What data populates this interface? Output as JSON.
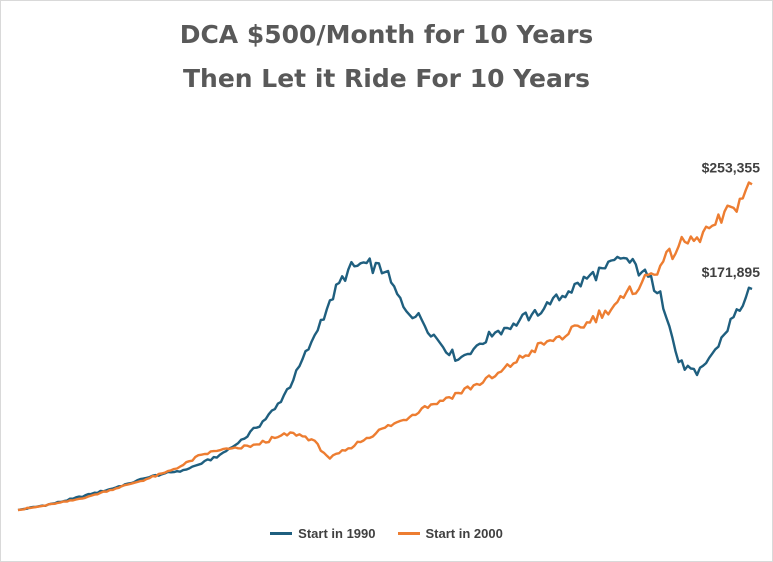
{
  "chart_data": {
    "type": "line",
    "title_lines": [
      "DCA $500/Month for 10 Years",
      "Then Let it Ride For 10 Years"
    ],
    "xlabel": "",
    "ylabel": "",
    "x_range": [
      0,
      240
    ],
    "ylim": [
      0,
      280000
    ],
    "grid": false,
    "legend_position": "bottom",
    "series": [
      {
        "name": "Start in 1990",
        "color": "#1f5f7f",
        "x": [
          0,
          6,
          12,
          18,
          24,
          30,
          36,
          42,
          48,
          54,
          60,
          66,
          72,
          78,
          84,
          90,
          96,
          102,
          108,
          114,
          120,
          126,
          132,
          138,
          144,
          150,
          156,
          162,
          168,
          174,
          180,
          186,
          192,
          198,
          204,
          210,
          216,
          222,
          228,
          234,
          240
        ],
        "values": [
          0,
          2500,
          5200,
          8800,
          12500,
          16200,
          20500,
          25000,
          28500,
          31000,
          36000,
          43000,
          52000,
          64000,
          78500,
          101000,
          131000,
          163000,
          187000,
          192000,
          185000,
          158000,
          148000,
          130000,
          117000,
          128000,
          138000,
          145000,
          152000,
          160000,
          170000,
          180000,
          188000,
          196000,
          185000,
          170000,
          115000,
          105000,
          125000,
          150000,
          171895
        ],
        "end_label": "$171,895"
      },
      {
        "name": "Start in 2000",
        "color": "#ed7d31",
        "x": [
          0,
          6,
          12,
          18,
          24,
          30,
          36,
          42,
          48,
          54,
          60,
          66,
          72,
          78,
          84,
          90,
          96,
          102,
          108,
          114,
          120,
          126,
          132,
          138,
          144,
          150,
          156,
          162,
          168,
          174,
          180,
          186,
          192,
          198,
          204,
          210,
          216,
          222,
          228,
          234,
          240
        ],
        "values": [
          0,
          2300,
          4800,
          7500,
          11200,
          15500,
          19800,
          24000,
          29000,
          35000,
          43000,
          46500,
          48000,
          51000,
          56000,
          60000,
          55000,
          40000,
          48000,
          56000,
          64000,
          70000,
          79000,
          85000,
          91000,
          98000,
          104000,
          114000,
          124000,
          132000,
          137000,
          146000,
          155000,
          165000,
          177000,
          190000,
          205000,
          212000,
          222000,
          235000,
          253355
        ],
        "end_label": "$253,355"
      }
    ]
  },
  "legend": {
    "items": [
      "Start in 1990",
      "Start in 2000"
    ]
  }
}
